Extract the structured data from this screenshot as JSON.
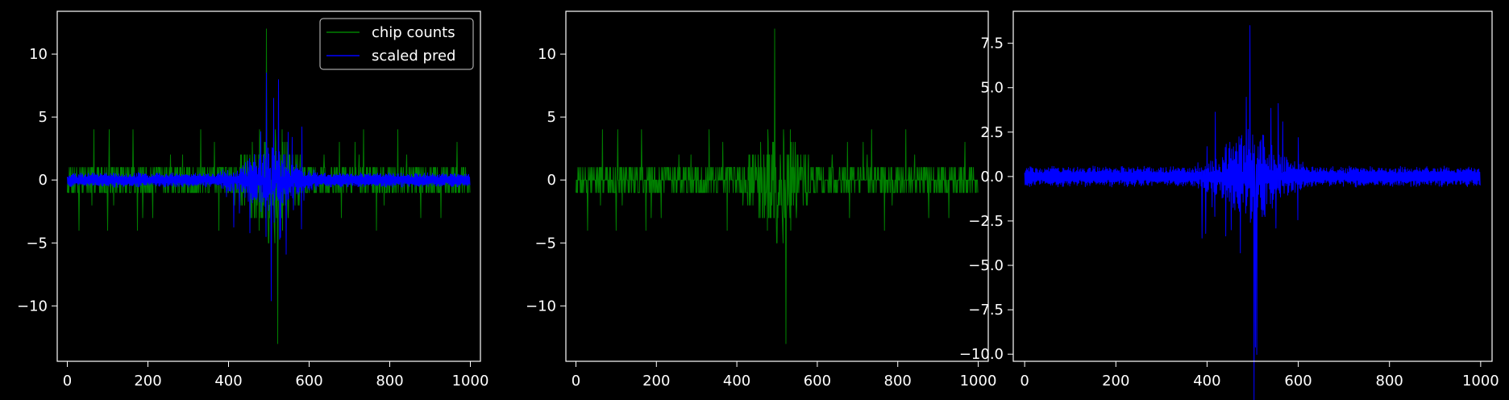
{
  "chart_data": [
    {
      "type": "line",
      "title": "",
      "xlabel": "",
      "ylabel": "",
      "xlim": [
        -25,
        1025
      ],
      "ylim": [
        -14.4,
        13.4
      ],
      "xticks": [
        0,
        200,
        400,
        600,
        800,
        1000
      ],
      "yticks": [
        -10,
        -5,
        0,
        5,
        10
      ],
      "xtick_labels": [
        "0",
        "200",
        "400",
        "600",
        "800",
        "1000"
      ],
      "ytick_labels": [
        "−10",
        "−5",
        "0",
        "5",
        "10"
      ],
      "legend": {
        "position": "top-right",
        "entries": [
          "chip counts",
          "scaled pred"
        ]
      },
      "series": [
        {
          "name": "chip counts",
          "color": "#008000",
          "summary": {
            "n_points": 1000,
            "baseline_noise": [
              -2,
              2
            ],
            "max": 12,
            "max_at": 494,
            "min": -13,
            "min_at": 522,
            "burst_range": [
              380,
              620
            ]
          }
        },
        {
          "name": "scaled pred",
          "color": "#0000ff",
          "summary": {
            "n_points": 1000,
            "baseline_noise": [
              -1,
              1
            ],
            "max": 8.5,
            "max_at": 494,
            "min": -9.6,
            "min_at": 506,
            "burst_range": [
              380,
              620
            ]
          }
        }
      ]
    },
    {
      "type": "line",
      "title": "",
      "xlabel": "",
      "ylabel": "",
      "xlim": [
        -25,
        1025
      ],
      "ylim": [
        -14.4,
        13.4
      ],
      "xticks": [
        0,
        200,
        400,
        600,
        800,
        1000
      ],
      "yticks": [
        -10,
        -5,
        0,
        5,
        10
      ],
      "xtick_labels": [
        "0",
        "200",
        "400",
        "600",
        "800",
        "1000"
      ],
      "ytick_labels": [
        "−10",
        "−5",
        "0",
        "5",
        "10"
      ],
      "series": [
        {
          "color": "#008000",
          "summary": {
            "n_points": 1000,
            "baseline_noise": [
              -2,
              2
            ],
            "max": 12,
            "max_at": 494,
            "min": -13,
            "min_at": 522,
            "burst_range": [
              380,
              620
            ]
          }
        }
      ]
    },
    {
      "type": "line",
      "title": "",
      "xlabel": "",
      "ylabel": "",
      "xlim": [
        -25,
        1025
      ],
      "ylim": [
        -10.4,
        9.3
      ],
      "xticks": [
        0,
        200,
        400,
        600,
        800,
        1000
      ],
      "yticks": [
        -10,
        -7.5,
        -5,
        -2.5,
        0,
        2.5,
        5,
        7.5
      ],
      "xtick_labels": [
        "0",
        "200",
        "400",
        "600",
        "800",
        "1000"
      ],
      "ytick_labels": [
        "−10.0",
        "−7.5",
        "−5.0",
        "−2.5",
        "0.0",
        "2.5",
        "5.0",
        "7.5"
      ],
      "series": [
        {
          "color": "#0000ff",
          "summary": {
            "n_points": 1000,
            "baseline_noise": [
              -1,
              1
            ],
            "max": 8.5,
            "max_at": 494,
            "min": -9.6,
            "min_at": 506,
            "burst_range": [
              380,
              620
            ]
          }
        }
      ]
    }
  ]
}
